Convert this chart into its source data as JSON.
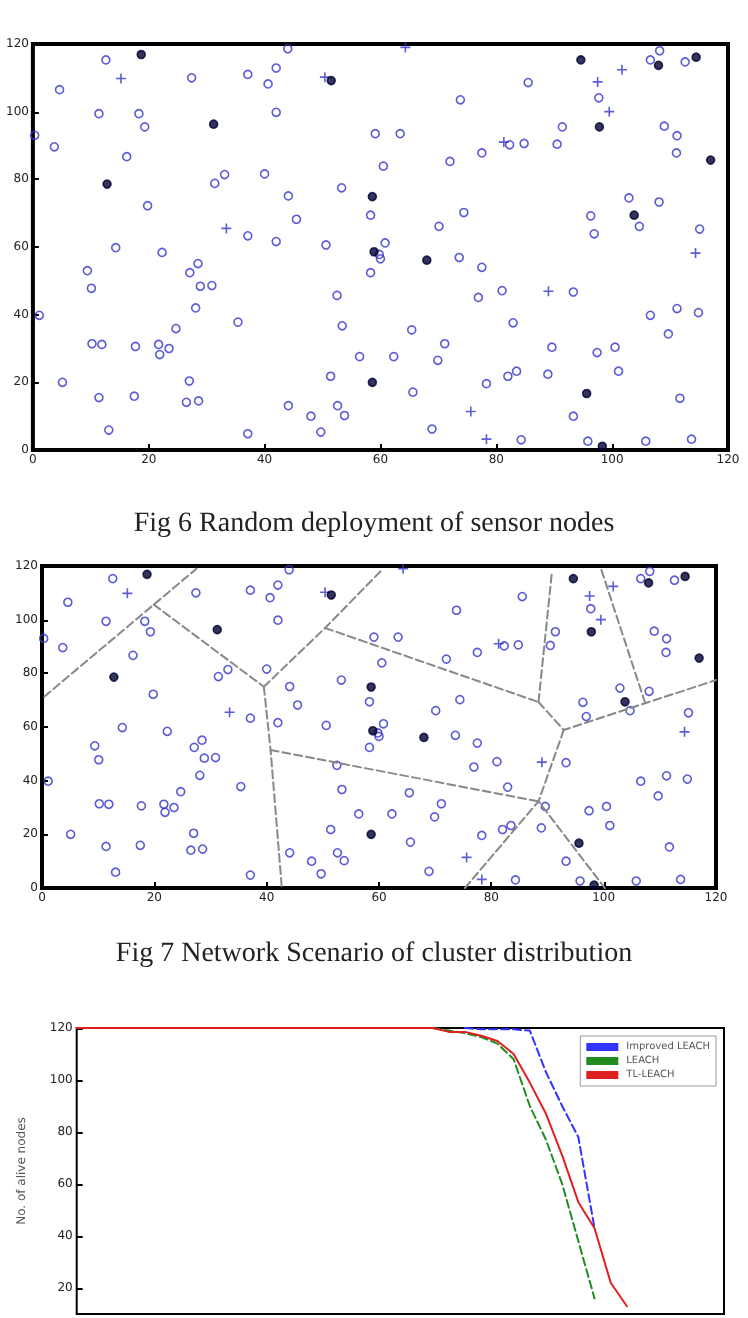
{
  "chart_data": [
    {
      "type": "scatter",
      "title": "Fig 6 Random deployment of sensor nodes",
      "xlim": [
        0,
        120
      ],
      "ylim": [
        0,
        120
      ],
      "xticks": [
        0,
        20,
        40,
        60,
        80,
        100,
        120
      ],
      "yticks": [
        0,
        20,
        40,
        60,
        80,
        100,
        120
      ],
      "grid": false,
      "legend": false,
      "series": [
        {
          "color": "#3333cc",
          "marker": "circle",
          "x": [
            12.6,
            4.6,
            0.3,
            3.7,
            11.4,
            18.3,
            19.3,
            16.2,
            27.4,
            37.1,
            40.6,
            42,
            44,
            42,
            31.4,
            33.1,
            40,
            19.8,
            14.3,
            22.3,
            37.1,
            42,
            45.5,
            44.1,
            50.6,
            53.3,
            9.4,
            10.1,
            27.1,
            28.5,
            28.9,
            30.9,
            28.1,
            35.4,
            24.7,
            10.2,
            11.9,
            17.7,
            21.7,
            21.9,
            23.5,
            1.1,
            5.1,
            11.4,
            17.5,
            27,
            26.5,
            28.6,
            44.1,
            52.5,
            53.4,
            51.4,
            52.6,
            56.4,
            62.3,
            65.4,
            69.9,
            71.1,
            65.6,
            78.3,
            82,
            83.5,
            88.9,
            89.6,
            97.4,
            100.5,
            101.1,
            111.7,
            82.9,
            76.9,
            81,
            93.3,
            106.6,
            109.7,
            111.2,
            114.9,
            73.6,
            77.5,
            70.1,
            74.4,
            58.3,
            58.3,
            60,
            60.8,
            59.8,
            96.3,
            96.9,
            104.7,
            108.1,
            102.9,
            115.1,
            60.5,
            59.1,
            63.4,
            72,
            77.5,
            82.3,
            84.8,
            90.5,
            91.4,
            73.8,
            85.5,
            97.7,
            109,
            111.2,
            111.1,
            106.6,
            108.2,
            112.6,
            13.1,
            37.1,
            49.7,
            68.9,
            84.3,
            95.8,
            105.8,
            113.7,
            53.8,
            93.3,
            48
          ],
          "values": [
            115.3,
            106.5,
            93,
            89.6,
            99.4,
            99.4,
            95.5,
            86.7,
            110,
            111,
            108.2,
            112.9,
            118.6,
            99.8,
            78.8,
            81.4,
            81.6,
            72.2,
            59.8,
            58.4,
            63.3,
            61.6,
            68.2,
            75.1,
            60.6,
            77.5,
            53,
            47.8,
            52.4,
            55.1,
            48.4,
            48.6,
            42,
            37.8,
            35.9,
            31.4,
            31.2,
            30.6,
            31.2,
            28.2,
            30,
            39.8,
            20,
            15.5,
            15.9,
            20.4,
            14.1,
            14.5,
            13.1,
            45.7,
            36.7,
            21.8,
            13.1,
            27.6,
            27.6,
            35.5,
            26.5,
            31.4,
            17.1,
            19.6,
            21.8,
            23.3,
            22.4,
            30.4,
            28.8,
            30.4,
            23.3,
            15.3,
            37.6,
            45.1,
            47.1,
            46.7,
            39.8,
            34.3,
            41.8,
            40.6,
            56.9,
            54,
            66.1,
            70.2,
            69.4,
            52.4,
            56.5,
            61.2,
            57.8,
            69.2,
            63.9,
            66.1,
            73.3,
            74.5,
            65.3,
            83.9,
            93.5,
            93.5,
            85.3,
            87.8,
            90.2,
            90.6,
            90.4,
            95.5,
            103.5,
            108.6,
            104.1,
            95.7,
            92.9,
            87.8,
            115.3,
            118,
            114.7,
            5.9,
            4.8,
            5.3,
            6.2,
            3,
            2.6,
            2.6,
            3.2,
            10.2,
            10,
            10
          ]
        },
        {
          "color": "#3333cc",
          "marker": "cross",
          "x": [
            15.2,
            50.4,
            33.4,
            81.3,
            97.5,
            101.7,
            99.5,
            89,
            114.4,
            75.6,
            78.3,
            64.3
          ],
          "values": [
            109.8,
            110.2,
            65.5,
            91,
            108.8,
            112.4,
            100,
            46.9,
            58.2,
            11.4,
            3.2,
            119
          ]
        },
        {
          "color": "#000033",
          "marker": "filled_circle",
          "x": [
            18.7,
            31.2,
            12.8,
            51.5,
            58.6,
            58.9,
            68,
            58.6,
            97.8,
            103.8,
            117,
            94.6,
            108,
            114.5,
            95.6,
            98.3
          ],
          "values": [
            116.9,
            96.3,
            78.6,
            109.2,
            74.9,
            58.6,
            56.1,
            20,
            95.5,
            69.4,
            85.7,
            115.3,
            113.7,
            116.1,
            16.7,
            1.1
          ]
        }
      ]
    },
    {
      "type": "scatter",
      "title": "Fig 7 Network Scenario of cluster distribution",
      "xlim": [
        0,
        120
      ],
      "ylim": [
        0,
        120
      ],
      "xticks": [
        0,
        20,
        40,
        60,
        80,
        100,
        120
      ],
      "yticks": [
        0,
        20,
        40,
        60,
        80,
        100,
        120
      ],
      "grid": false,
      "legend": false,
      "series": [
        {
          "color": "#3333cc",
          "marker": "circle",
          "x": [
            12.6,
            4.6,
            0.3,
            3.7,
            11.4,
            18.3,
            19.3,
            16.2,
            27.4,
            37.1,
            40.6,
            42,
            44,
            42,
            31.4,
            33.1,
            40,
            19.8,
            14.3,
            22.3,
            37.1,
            42,
            45.5,
            44.1,
            50.6,
            53.3,
            9.4,
            10.1,
            27.1,
            28.5,
            28.9,
            30.9,
            28.1,
            35.4,
            24.7,
            10.2,
            11.9,
            17.7,
            21.7,
            21.9,
            23.5,
            1.1,
            5.1,
            11.4,
            17.5,
            27,
            26.5,
            28.6,
            44.1,
            52.5,
            53.4,
            51.4,
            52.6,
            56.4,
            62.3,
            65.4,
            69.9,
            71.1,
            65.6,
            78.3,
            82,
            83.5,
            88.9,
            89.6,
            97.4,
            100.5,
            101.1,
            111.7,
            82.9,
            76.9,
            81,
            93.3,
            106.6,
            109.7,
            111.2,
            114.9,
            73.6,
            77.5,
            70.1,
            74.4,
            58.3,
            58.3,
            60,
            60.8,
            59.8,
            96.3,
            96.9,
            104.7,
            108.1,
            102.9,
            115.1,
            60.5,
            59.1,
            63.4,
            72,
            77.5,
            82.3,
            84.8,
            90.5,
            91.4,
            73.8,
            85.5,
            97.7,
            109,
            111.2,
            111.1,
            106.6,
            108.2,
            112.6,
            13.1,
            37.1,
            49.7,
            68.9,
            84.3,
            95.8,
            105.8,
            113.7,
            53.8,
            93.3,
            48
          ],
          "values": [
            115.3,
            106.5,
            93,
            89.6,
            99.4,
            99.4,
            95.5,
            86.7,
            110,
            111,
            108.2,
            112.9,
            118.6,
            99.8,
            78.8,
            81.4,
            81.6,
            72.2,
            59.8,
            58.4,
            63.3,
            61.6,
            68.2,
            75.1,
            60.6,
            77.5,
            53,
            47.8,
            52.4,
            55.1,
            48.4,
            48.6,
            42,
            37.8,
            35.9,
            31.4,
            31.2,
            30.6,
            31.2,
            28.2,
            30,
            39.8,
            20,
            15.5,
            15.9,
            20.4,
            14.1,
            14.5,
            13.1,
            45.7,
            36.7,
            21.8,
            13.1,
            27.6,
            27.6,
            35.5,
            26.5,
            31.4,
            17.1,
            19.6,
            21.8,
            23.3,
            22.4,
            30.4,
            28.8,
            30.4,
            23.3,
            15.3,
            37.6,
            45.1,
            47.1,
            46.7,
            39.8,
            34.3,
            41.8,
            40.6,
            56.9,
            54,
            66.1,
            70.2,
            69.4,
            52.4,
            56.5,
            61.2,
            57.8,
            69.2,
            63.9,
            66.1,
            73.3,
            74.5,
            65.3,
            83.9,
            93.5,
            93.5,
            85.3,
            87.8,
            90.2,
            90.6,
            90.4,
            95.5,
            103.5,
            108.6,
            104.1,
            95.7,
            92.9,
            87.8,
            115.3,
            118,
            114.7,
            5.9,
            4.8,
            5.3,
            6.2,
            3,
            2.6,
            2.6,
            3.2,
            10.2,
            10,
            10
          ]
        },
        {
          "color": "#3333cc",
          "marker": "cross",
          "x": [
            15.2,
            50.4,
            33.4,
            81.3,
            97.5,
            101.7,
            99.5,
            89,
            114.4,
            75.6,
            78.3,
            64.3
          ],
          "values": [
            109.8,
            110.2,
            65.5,
            91,
            108.8,
            112.4,
            100,
            46.9,
            58.2,
            11.4,
            3.2,
            119
          ]
        },
        {
          "color": "#000033",
          "marker": "filled_circle",
          "x": [
            18.7,
            31.2,
            12.8,
            51.5,
            58.6,
            58.9,
            68,
            58.6,
            97.8,
            103.8,
            117,
            94.6,
            108,
            114.5,
            95.6,
            98.3
          ],
          "values": [
            116.9,
            96.3,
            78.6,
            109.2,
            74.9,
            58.6,
            56.1,
            20,
            95.5,
            69.4,
            85.7,
            115.3,
            113.7,
            116.1,
            16.7,
            1.1
          ]
        },
        {
          "type": "line",
          "color": "#888888",
          "line_style": "dashed",
          "marker": "none",
          "x": [
            0.4,
            19.9,
            27.5
          ],
          "values": [
            71.3,
            105.6,
            119
          ]
        },
        {
          "type": "line",
          "color": "#888888",
          "line_style": "dashed",
          "marker": "none",
          "x": [
            19.9,
            39.5
          ],
          "values": [
            105.6,
            75
          ]
        },
        {
          "type": "line",
          "color": "#888888",
          "line_style": "dashed",
          "marker": "none",
          "x": [
            39.5,
            50.4,
            60.5
          ],
          "values": [
            75,
            96.9,
            118.5
          ]
        },
        {
          "type": "line",
          "color": "#888888",
          "line_style": "dashed",
          "marker": "none",
          "x": [
            39.5,
            40.7,
            42.7
          ],
          "values": [
            75,
            51.4,
            0
          ]
        },
        {
          "type": "line",
          "color": "#888888",
          "line_style": "dashed",
          "marker": "none",
          "x": [
            40.7,
            88.4
          ],
          "values": [
            51.4,
            32.3
          ]
        },
        {
          "type": "line",
          "color": "#888888",
          "line_style": "dashed",
          "marker": "none",
          "x": [
            50.4,
            88.4
          ],
          "values": [
            96.9,
            69.3
          ]
        },
        {
          "type": "line",
          "color": "#888888",
          "line_style": "dashed",
          "marker": "none",
          "x": [
            88.4,
            90.8
          ],
          "values": [
            69.3,
            118
          ]
        },
        {
          "type": "line",
          "color": "#888888",
          "line_style": "dashed",
          "marker": "none",
          "x": [
            88.4,
            92.9,
            120
          ],
          "values": [
            69.3,
            58.9,
            77.5
          ]
        },
        {
          "type": "line",
          "color": "#888888",
          "line_style": "dashed",
          "marker": "none",
          "x": [
            92.9,
            88.4
          ],
          "values": [
            58.9,
            32.3
          ]
        },
        {
          "type": "line",
          "color": "#888888",
          "line_style": "dashed",
          "marker": "none",
          "x": [
            75.3,
            88.4,
            100.2
          ],
          "values": [
            0,
            32.3,
            0
          ]
        },
        {
          "type": "line",
          "color": "#888888",
          "line_style": "dashed",
          "marker": "none",
          "x": [
            99.6,
            107.4
          ],
          "values": [
            118.5,
            68.9
          ]
        }
      ]
    },
    {
      "type": "line",
      "ylabel": "No. of alive nodes",
      "categories": [
        null,
        null,
        null,
        null,
        null,
        null,
        null,
        null,
        null,
        null,
        null,
        null,
        null,
        null,
        null,
        null,
        null,
        null,
        null,
        null,
        null,
        null,
        null,
        null,
        null,
        null,
        null,
        null,
        null,
        null,
        null,
        null,
        null,
        null,
        null,
        null,
        null,
        null,
        null,
        null,
        null
      ],
      "ylim": [
        10,
        120
      ],
      "yticks": [
        20,
        40,
        60,
        80,
        100,
        120
      ],
      "tick_labels": "y",
      "grid": false,
      "legend": "top right",
      "marker": "none",
      "series": [
        {
          "name": "Improved LEACH",
          "color": "#3333ff",
          "line_style": "dashed",
          "values": [
            null,
            null,
            null,
            null,
            null,
            null,
            null,
            null,
            null,
            null,
            null,
            null,
            null,
            null,
            null,
            null,
            null,
            null,
            null,
            null,
            null,
            null,
            null,
            null,
            120,
            119.5,
            119.5,
            119.5,
            119,
            103,
            90,
            78,
            43,
            null,
            null,
            null,
            null,
            null,
            null,
            null,
            null
          ]
        },
        {
          "name": "LEACH",
          "color": "#228b22",
          "line_style": "dashed",
          "values": [
            null,
            null,
            null,
            null,
            null,
            null,
            null,
            null,
            null,
            null,
            null,
            null,
            null,
            null,
            null,
            null,
            null,
            null,
            null,
            null,
            null,
            null,
            120,
            119,
            118,
            116.5,
            114,
            108,
            90,
            77,
            60,
            38,
            16,
            null,
            null,
            null,
            null,
            null,
            null,
            null,
            null
          ]
        },
        {
          "name": "TL-LEACH",
          "color": "#e02020",
          "line_style": "solid",
          "values": [
            120,
            120,
            120,
            120,
            120,
            120,
            120,
            120,
            120,
            120,
            120,
            120,
            120,
            120,
            120,
            120,
            120,
            120,
            120,
            120,
            120,
            120,
            120,
            118.5,
            118.5,
            117,
            115,
            110,
            99,
            87,
            71,
            53,
            43,
            22,
            13,
            null,
            null,
            null,
            null,
            null,
            null
          ]
        }
      ]
    }
  ]
}
